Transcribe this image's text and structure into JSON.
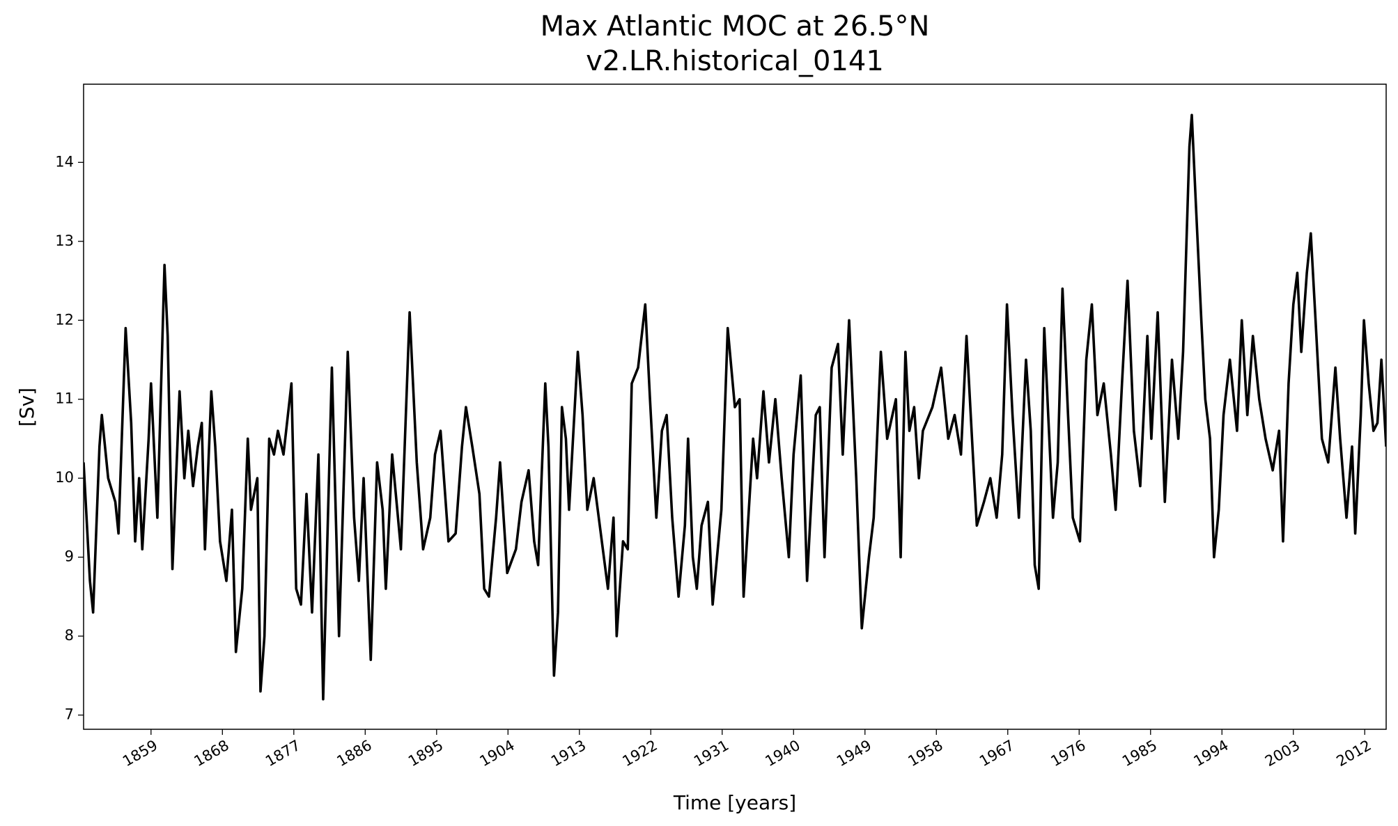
{
  "chart_data": {
    "type": "line",
    "title": "Max Atlantic MOC at 26.5°N",
    "subtitle": "v2.LR.historical_0141",
    "x_label": "Time [years]",
    "y_label": "[Sv]",
    "color": "#000000",
    "grid": false,
    "xlim": [
      1850.5,
      2014.7
    ],
    "ylim": [
      6.82,
      14.99
    ],
    "xticks": [
      1859,
      1868,
      1877,
      1886,
      1895,
      1904,
      1913,
      1922,
      1931,
      1940,
      1949,
      1958,
      1967,
      1976,
      1985,
      1994,
      2003,
      2012
    ],
    "yticks": [
      7,
      8,
      9,
      10,
      11,
      12,
      13,
      14
    ],
    "x": [
      1850.5,
      1851.3,
      1851.7,
      1852.5,
      1852.8,
      1853.6,
      1854.5,
      1854.9,
      1855.8,
      1856.5,
      1857.0,
      1857.5,
      1857.9,
      1858.7,
      1859.0,
      1859.8,
      1860.7,
      1861.1,
      1861.7,
      1862.6,
      1863.2,
      1863.7,
      1864.3,
      1864.9,
      1865.4,
      1865.8,
      1866.6,
      1867.1,
      1867.7,
      1868.5,
      1869.2,
      1869.7,
      1870.5,
      1871.2,
      1871.6,
      1872.4,
      1872.8,
      1873.3,
      1873.9,
      1874.5,
      1875.0,
      1875.7,
      1876.7,
      1877.3,
      1877.9,
      1878.6,
      1879.3,
      1880.1,
      1880.7,
      1881.8,
      1882.7,
      1883.8,
      1884.6,
      1885.2,
      1885.8,
      1886.7,
      1887.5,
      1888.2,
      1888.6,
      1889.4,
      1890.5,
      1891.6,
      1892.5,
      1893.3,
      1894.2,
      1894.8,
      1895.5,
      1896.5,
      1897.4,
      1898.2,
      1898.7,
      1899.5,
      1900.4,
      1901.0,
      1901.6,
      1902.5,
      1903.0,
      1903.9,
      1905.0,
      1905.7,
      1906.6,
      1907.3,
      1907.8,
      1908.7,
      1909.1,
      1909.8,
      1910.3,
      1910.8,
      1911.3,
      1911.7,
      1912.8,
      1913.4,
      1914.0,
      1914.8,
      1915.7,
      1916.6,
      1917.3,
      1917.7,
      1918.5,
      1919.1,
      1919.6,
      1920.4,
      1921.3,
      1921.9,
      1922.7,
      1923.4,
      1924.0,
      1924.7,
      1925.5,
      1926.3,
      1926.7,
      1927.3,
      1927.8,
      1928.4,
      1929.2,
      1929.8,
      1930.9,
      1931.7,
      1932.6,
      1933.2,
      1933.7,
      1934.9,
      1935.4,
      1936.2,
      1936.9,
      1937.7,
      1938.5,
      1939.4,
      1940.0,
      1940.9,
      1941.7,
      1942.8,
      1943.3,
      1943.9,
      1944.8,
      1945.6,
      1946.2,
      1947.0,
      1947.9,
      1948.6,
      1949.5,
      1950.1,
      1951.0,
      1951.8,
      1952.9,
      1953.5,
      1954.1,
      1954.6,
      1955.2,
      1955.8,
      1956.3,
      1957.5,
      1958.6,
      1959.5,
      1960.3,
      1961.1,
      1961.8,
      1962.6,
      1963.1,
      1964.0,
      1964.8,
      1965.6,
      1966.3,
      1966.9,
      1967.6,
      1968.4,
      1969.3,
      1969.9,
      1970.4,
      1970.9,
      1971.6,
      1972.1,
      1972.7,
      1973.3,
      1973.9,
      1974.6,
      1975.2,
      1976.1,
      1976.9,
      1977.6,
      1978.3,
      1979.1,
      1980.0,
      1980.6,
      1981.4,
      1982.1,
      1982.9,
      1983.7,
      1984.6,
      1985.1,
      1985.9,
      1986.8,
      1987.7,
      1988.5,
      1989.1,
      1989.9,
      1990.2,
      1990.7,
      1991.4,
      1991.9,
      1992.5,
      1993.0,
      1993.6,
      1994.2,
      1995.0,
      1995.9,
      1996.5,
      1997.2,
      1997.9,
      1998.7,
      1999.5,
      2000.4,
      2001.2,
      2001.7,
      2002.4,
      2003.0,
      2003.5,
      2004.0,
      2004.7,
      2005.2,
      2005.8,
      2006.6,
      2007.4,
      2008.3,
      2008.9,
      2009.7,
      2010.4,
      2010.8,
      2011.5,
      2011.9,
      2012.5,
      2013.1,
      2013.6,
      2014.1,
      2014.7
    ],
    "values": [
      10.2,
      8.7,
      8.3,
      10.4,
      10.8,
      10.0,
      9.7,
      9.3,
      11.9,
      10.7,
      9.2,
      10.0,
      9.1,
      10.5,
      11.2,
      9.5,
      12.7,
      11.8,
      8.85,
      11.1,
      10.0,
      10.6,
      9.9,
      10.4,
      10.7,
      9.1,
      11.1,
      10.4,
      9.2,
      8.7,
      9.6,
      7.8,
      8.6,
      10.5,
      9.6,
      10.0,
      7.3,
      8.0,
      10.5,
      10.3,
      10.6,
      10.3,
      11.2,
      8.6,
      8.4,
      9.8,
      8.3,
      10.3,
      7.2,
      11.4,
      8.0,
      11.6,
      9.5,
      8.7,
      10.0,
      7.7,
      10.2,
      9.6,
      8.6,
      10.3,
      9.1,
      12.1,
      10.2,
      9.1,
      9.5,
      10.3,
      10.6,
      9.2,
      9.3,
      10.4,
      10.9,
      10.4,
      9.8,
      8.6,
      8.5,
      9.5,
      10.2,
      8.8,
      9.1,
      9.7,
      10.1,
      9.2,
      8.9,
      11.2,
      10.4,
      7.5,
      8.3,
      10.9,
      10.5,
      9.6,
      11.6,
      10.8,
      9.6,
      10.0,
      9.3,
      8.6,
      9.5,
      8.0,
      9.2,
      9.1,
      11.2,
      11.4,
      12.2,
      11.0,
      9.5,
      10.6,
      10.8,
      9.5,
      8.5,
      9.4,
      10.5,
      9.0,
      8.6,
      9.4,
      9.7,
      8.4,
      9.6,
      11.9,
      10.9,
      11.0,
      8.5,
      10.5,
      10.0,
      11.1,
      10.2,
      11.0,
      10.0,
      9.0,
      10.3,
      11.3,
      8.7,
      10.8,
      10.9,
      9.0,
      11.4,
      11.7,
      10.3,
      12.0,
      10.0,
      8.1,
      9.0,
      9.5,
      11.6,
      10.5,
      11.0,
      9.0,
      11.6,
      10.6,
      10.9,
      10.0,
      10.6,
      10.9,
      11.4,
      10.5,
      10.8,
      10.3,
      11.8,
      10.3,
      9.4,
      9.7,
      10.0,
      9.5,
      10.3,
      12.2,
      10.8,
      9.5,
      11.5,
      10.6,
      8.9,
      8.6,
      11.9,
      10.8,
      9.5,
      10.2,
      12.4,
      10.8,
      9.5,
      9.2,
      11.5,
      12.2,
      10.8,
      11.2,
      10.3,
      9.6,
      11.2,
      12.5,
      10.6,
      9.9,
      11.8,
      10.5,
      12.1,
      9.7,
      11.5,
      10.5,
      11.6,
      14.2,
      14.6,
      13.5,
      12.0,
      11.0,
      10.5,
      9.0,
      9.6,
      10.8,
      11.5,
      10.6,
      12.0,
      10.8,
      11.8,
      11.0,
      10.5,
      10.1,
      10.6,
      9.2,
      11.2,
      12.2,
      12.6,
      11.6,
      12.6,
      13.1,
      12.0,
      10.5,
      10.2,
      11.4,
      10.5,
      9.5,
      10.4,
      9.3,
      10.8,
      12.0,
      11.2,
      10.6,
      10.7,
      11.5,
      10.4
    ]
  }
}
